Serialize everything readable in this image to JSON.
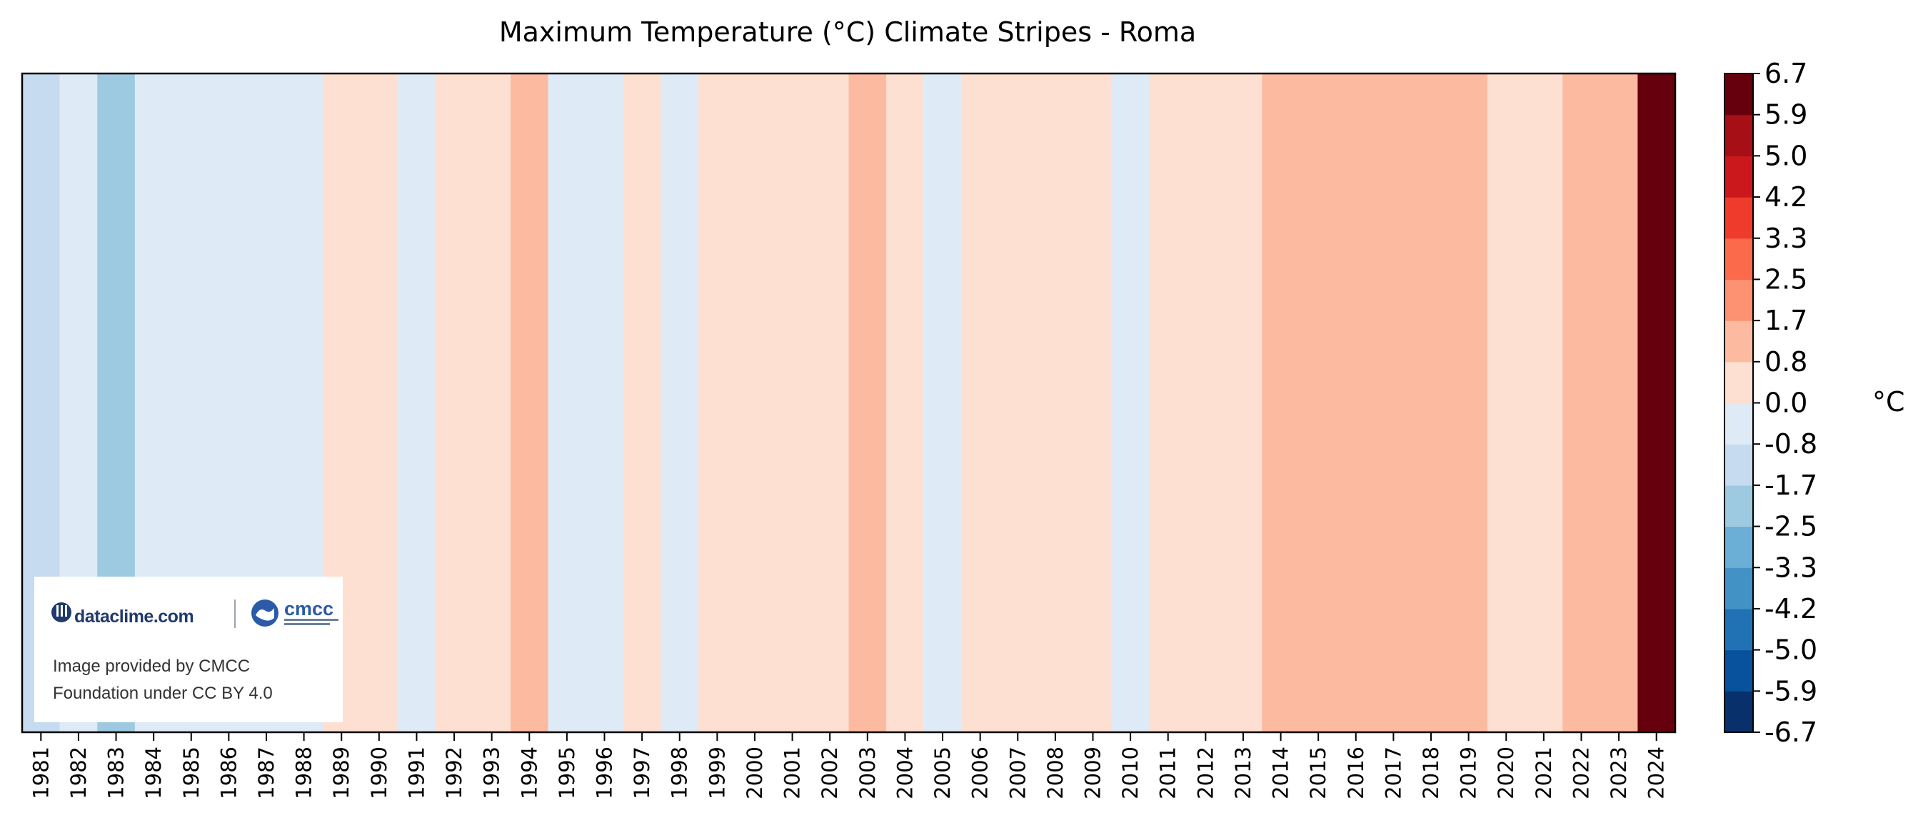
{
  "chart_data": {
    "type": "heatmap",
    "title": "Maximum Temperature (°C) Climate Stripes - Roma",
    "xlabel": "",
    "ylabel": "",
    "years": [
      "1981",
      "1982",
      "1983",
      "1984",
      "1985",
      "1986",
      "1987",
      "1988",
      "1989",
      "1990",
      "1991",
      "1992",
      "1993",
      "1994",
      "1995",
      "1996",
      "1997",
      "1998",
      "1999",
      "2000",
      "2001",
      "2002",
      "2003",
      "2004",
      "2005",
      "2006",
      "2007",
      "2008",
      "2009",
      "2010",
      "2011",
      "2012",
      "2013",
      "2014",
      "2015",
      "2016",
      "2017",
      "2018",
      "2019",
      "2020",
      "2021",
      "2022",
      "2023",
      "2024"
    ],
    "anomalies": [
      -1.2,
      -0.4,
      -2.1,
      -0.4,
      -0.4,
      -0.4,
      -0.4,
      -0.4,
      0.4,
      0.4,
      -0.4,
      0.4,
      0.4,
      1.2,
      -0.4,
      -0.4,
      0.4,
      -0.4,
      0.4,
      0.4,
      0.4,
      0.4,
      1.2,
      0.4,
      -0.4,
      0.4,
      0.4,
      0.4,
      0.4,
      -0.4,
      0.4,
      0.4,
      0.4,
      1.2,
      1.2,
      1.2,
      1.2,
      1.2,
      1.2,
      0.4,
      0.4,
      1.2,
      1.2,
      6.5
    ],
    "colorbar": {
      "label": "°C",
      "ticks": [
        "-6.7",
        "-5.9",
        "-5.0",
        "-4.2",
        "-3.3",
        "-2.5",
        "-1.7",
        "-0.8",
        "0.0",
        "0.8",
        "1.7",
        "2.5",
        "3.3",
        "4.2",
        "5.0",
        "5.9",
        "6.7"
      ],
      "range": [
        -6.7,
        6.7
      ],
      "colors": [
        "#08306b",
        "#08519c",
        "#2171b5",
        "#4292c6",
        "#6baed6",
        "#9ecae1",
        "#c6dbef",
        "#deebf7",
        "#fee0d2",
        "#fcbba1",
        "#fc9272",
        "#fb6a4a",
        "#ef3b2c",
        "#cb181d",
        "#a50f15",
        "#67000d"
      ]
    }
  },
  "credit": {
    "dataclime_logo": "dataclime.com",
    "cmcc_logo": "cmcc",
    "line1": "Image provided by CMCC",
    "line2": "Foundation under CC BY 4.0"
  }
}
